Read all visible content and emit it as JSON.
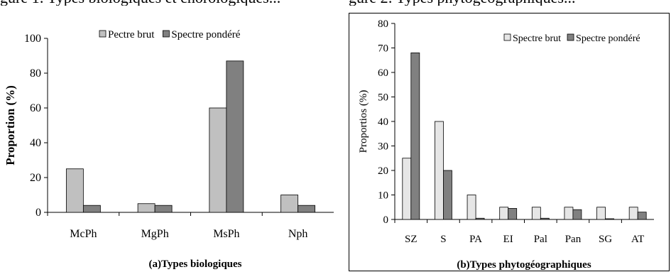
{
  "header_fragments": {
    "left": "gure 1: Types biologiques et chorologiques...",
    "right": "gure 2: Types phytogéographiques..."
  },
  "chart_data": [
    {
      "type": "bar",
      "title": "(a)Types biologiques",
      "xlabel": "",
      "ylabel": "Proportion (%)",
      "ylim": [
        0,
        100
      ],
      "yticks": [
        0,
        20,
        40,
        60,
        80,
        100
      ],
      "grid": false,
      "legend_position": "top",
      "categories": [
        "McPh",
        "MgPh",
        "MsPh",
        "Nph"
      ],
      "series": [
        {
          "name": "Pectre brut",
          "color": "#c0c0c0",
          "values": [
            25,
            5,
            60,
            10
          ]
        },
        {
          "name": "Spectre pondéré",
          "color": "#808080",
          "values": [
            4,
            4,
            87,
            4
          ]
        }
      ]
    },
    {
      "type": "bar",
      "title": "(b)Types phytogéographiques",
      "xlabel": "",
      "ylabel": "Proportios (%)",
      "ylim": [
        0,
        80
      ],
      "yticks": [
        0,
        10,
        20,
        30,
        40,
        50,
        60,
        70,
        80
      ],
      "grid": false,
      "legend_position": "top-right",
      "categories": [
        "SZ",
        "S",
        "PA",
        "EI",
        "Pal",
        "Pan",
        "SG",
        "AT"
      ],
      "series": [
        {
          "name": "Spectre brut",
          "color": "#e6e6e6",
          "values": [
            25,
            40,
            10,
            5,
            5,
            5,
            5,
            5
          ]
        },
        {
          "name": "Spectre pondéré",
          "color": "#808080",
          "values": [
            68,
            20,
            0.5,
            4.5,
            0.5,
            4,
            0.3,
            3
          ]
        }
      ]
    }
  ]
}
